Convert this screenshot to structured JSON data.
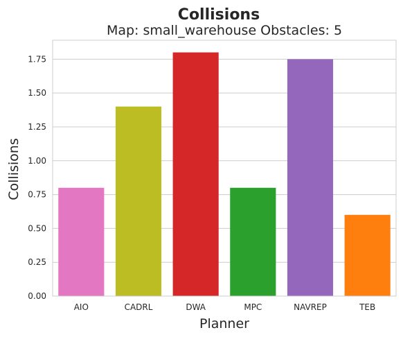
{
  "chart_data": {
    "type": "bar",
    "title": "Collisions",
    "subtitle": "Map: small_warehouse Obstacles: 5",
    "xlabel": "Planner",
    "ylabel": "Collisions",
    "categories": [
      "AIO",
      "CADRL",
      "DWA",
      "MPC",
      "NAVREP",
      "TEB"
    ],
    "values": [
      0.8,
      1.4,
      1.8,
      0.8,
      1.75,
      0.6
    ],
    "colors": [
      "#e377c2",
      "#bcbd22",
      "#d62728",
      "#2ca02c",
      "#9467bd",
      "#ff7f0e"
    ],
    "ylim": [
      0,
      1.89
    ],
    "yticks": [
      0.0,
      0.25,
      0.5,
      0.75,
      1.0,
      1.25,
      1.5,
      1.75
    ],
    "ytick_labels": [
      "0.00",
      "0.25",
      "0.50",
      "0.75",
      "1.00",
      "1.25",
      "1.50",
      "1.75"
    ],
    "grid": true,
    "grid_axis": "y",
    "grid_color": "#cccccc",
    "spine_color": "#cccccc"
  }
}
